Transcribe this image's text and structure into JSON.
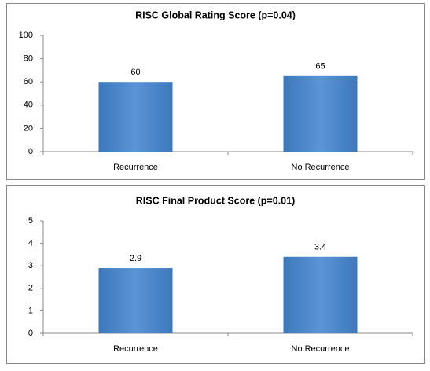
{
  "chart_data": [
    {
      "type": "bar",
      "title": "RISC Global Rating Score (p=0.04)",
      "categories": [
        "Recurrence",
        "No Recurrence"
      ],
      "values": [
        60,
        65
      ],
      "color": "#4a86c8",
      "ylim": [
        0,
        100
      ],
      "yticks": [
        0,
        20,
        40,
        60,
        80,
        100
      ],
      "grid": false
    },
    {
      "type": "bar",
      "title": "RISC Final Product Score (p=0.01)",
      "categories": [
        "Recurrence",
        "No Recurrence"
      ],
      "values": [
        2.9,
        3.4
      ],
      "color": "#4a86c8",
      "ylim": [
        0,
        5
      ],
      "yticks": [
        0,
        1,
        2,
        3,
        4,
        5
      ],
      "grid": false
    }
  ]
}
